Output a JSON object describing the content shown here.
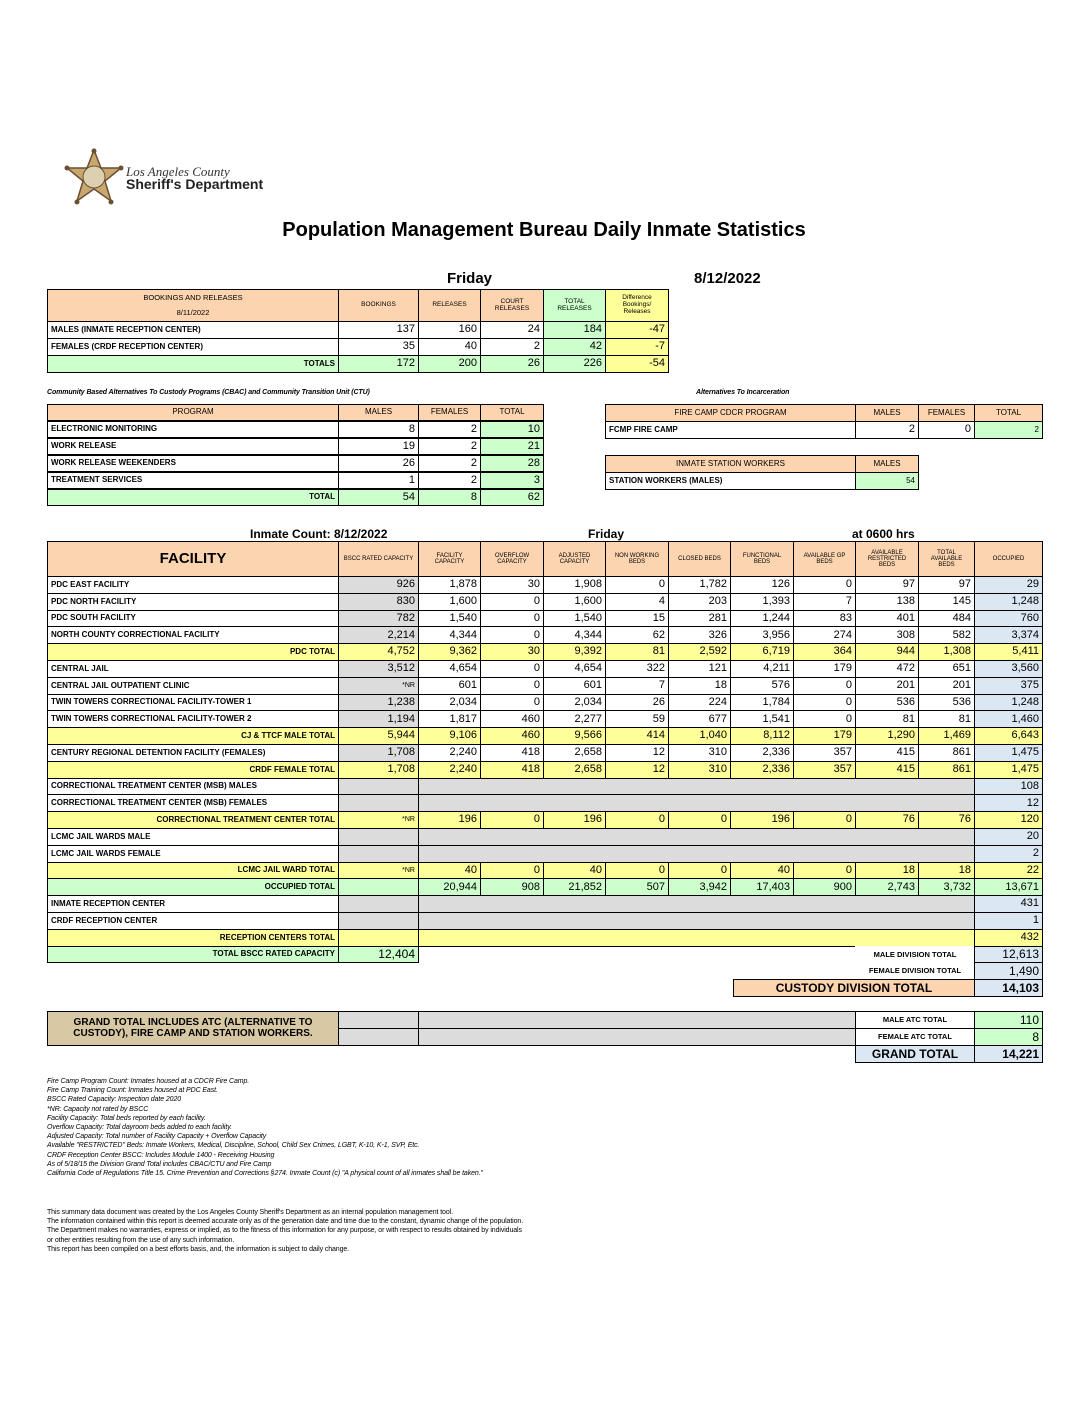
{
  "header": {
    "agency_line1": "Los Angeles County",
    "agency_line2": "Sheriff's Department",
    "title": "Population Management Bureau Daily Inmate Statistics",
    "day": "Friday",
    "date": "8/12/2022"
  },
  "bookings": {
    "title": "BOOKINGS AND RELEASES",
    "date": "8/11/2022",
    "columns": [
      "BOOKINGS",
      "RELEASES",
      "COURT RELEASES",
      "TOTAL RELEASES",
      "Difference Bookings/ Releases"
    ],
    "rows": [
      {
        "label": "MALES (INMATE RECEPTION CENTER)",
        "values": [
          "137",
          "160",
          "24",
          "184",
          "-47"
        ]
      },
      {
        "label": "FEMALES (CRDF RECEPTION CENTER)",
        "values": [
          "35",
          "40",
          "2",
          "42",
          "-7"
        ]
      },
      {
        "label": "TOTALS",
        "values": [
          "172",
          "200",
          "26",
          "226",
          "-54"
        ]
      }
    ]
  },
  "cbac": {
    "caption": "Community Based Alternatives To Custody Programs (CBAC) and Community Transition Unit (CTU)",
    "columns": [
      "PROGRAM",
      "MALES",
      "FEMALES",
      "TOTAL"
    ],
    "rows": [
      [
        "ELECTRONIC MONITORING",
        "8",
        "2",
        "10"
      ],
      [
        "WORK RELEASE",
        "19",
        "2",
        "21"
      ],
      [
        "WORK RELEASE WEEKENDERS",
        "26",
        "2",
        "28"
      ],
      [
        "TREATMENT SERVICES",
        "1",
        "2",
        "3"
      ],
      [
        "TOTAL",
        "54",
        "8",
        "62"
      ]
    ]
  },
  "atc": {
    "caption": "Alternatives To Incarceration",
    "fire_camp": {
      "columns": [
        "FIRE CAMP CDCR PROGRAM",
        "MALES",
        "FEMALES",
        "TOTAL"
      ],
      "rows": [
        [
          "FCMP FIRE CAMP",
          "2",
          "0",
          "2"
        ]
      ]
    },
    "station_workers": {
      "columns": [
        "INMATE STATION WORKERS",
        "MALES"
      ],
      "rows": [
        [
          "STATION WORKERS (MALES)",
          "54"
        ]
      ]
    }
  },
  "inmate_count": {
    "label": "Inmate Count: 8/12/2022",
    "day": "Friday",
    "time": "at 0600 hrs",
    "columns": [
      "FACILITY",
      "BSCC RATED CAPACITY",
      "FACILITY CAPACITY",
      "OVERFLOW CAPACITY",
      "ADJUSTED CAPACITY",
      "NON WORKING BEDS",
      "CLOSED BEDS",
      "FUNCTIONAL BEDS",
      "AVAILABLE GP BEDS",
      "AVAILABLE RESTRICTED BEDS",
      "TOTAL AVAILABLE BEDS",
      "OCCUPIED"
    ],
    "rows": [
      {
        "label": "PDC EAST FACILITY",
        "values": [
          "926",
          "1,878",
          "30",
          "1,908",
          "0",
          "1,782",
          "126",
          "0",
          "97",
          "97",
          "29"
        ]
      },
      {
        "label": "PDC NORTH FACILITY",
        "values": [
          "830",
          "1,600",
          "0",
          "1,600",
          "4",
          "203",
          "1,393",
          "7",
          "138",
          "145",
          "1,248"
        ]
      },
      {
        "label": "PDC SOUTH FACILITY",
        "values": [
          "782",
          "1,540",
          "0",
          "1,540",
          "15",
          "281",
          "1,244",
          "83",
          "401",
          "484",
          "760"
        ]
      },
      {
        "label": "NORTH COUNTY CORRECTIONAL FACILITY",
        "values": [
          "2,214",
          "4,344",
          "0",
          "4,344",
          "62",
          "326",
          "3,956",
          "274",
          "308",
          "582",
          "3,374"
        ]
      },
      {
        "label": "PDC TOTAL",
        "values": [
          "4,752",
          "9,362",
          "30",
          "9,392",
          "81",
          "2,592",
          "6,719",
          "364",
          "944",
          "1,308",
          "5,411"
        ]
      },
      {
        "label": "CENTRAL JAIL",
        "values": [
          "3,512",
          "4,654",
          "0",
          "4,654",
          "322",
          "121",
          "4,211",
          "179",
          "472",
          "651",
          "3,560"
        ]
      },
      {
        "label": "CENTRAL JAIL OUTPATIENT CLINIC",
        "values": [
          "*NR",
          "601",
          "0",
          "601",
          "7",
          "18",
          "576",
          "0",
          "201",
          "201",
          "375"
        ]
      },
      {
        "label": "TWIN TOWERS CORRECTIONAL FACILITY-TOWER 1",
        "values": [
          "1,238",
          "2,034",
          "0",
          "2,034",
          "26",
          "224",
          "1,784",
          "0",
          "536",
          "536",
          "1,248"
        ]
      },
      {
        "label": "TWIN TOWERS CORRECTIONAL FACILITY-TOWER 2",
        "values": [
          "1,194",
          "1,817",
          "460",
          "2,277",
          "59",
          "677",
          "1,541",
          "0",
          "81",
          "81",
          "1,460"
        ]
      },
      {
        "label": "CJ & TTCF MALE TOTAL",
        "values": [
          "5,944",
          "9,106",
          "460",
          "9,566",
          "414",
          "1,040",
          "8,112",
          "179",
          "1,290",
          "1,469",
          "6,643"
        ]
      },
      {
        "label": "CENTURY REGIONAL DETENTION FACILITY (FEMALES)",
        "values": [
          "1,708",
          "2,240",
          "418",
          "2,658",
          "12",
          "310",
          "2,336",
          "357",
          "415",
          "861",
          "1,475"
        ]
      },
      {
        "label": "CRDF FEMALE TOTAL",
        "values": [
          "1,708",
          "2,240",
          "418",
          "2,658",
          "12",
          "310",
          "2,336",
          "357",
          "415",
          "861",
          "1,475"
        ]
      },
      {
        "label": "CORRECTIONAL TREATMENT CENTER (MSB) MALES",
        "values": [
          null,
          null,
          null,
          null,
          null,
          null,
          null,
          null,
          null,
          null,
          "108"
        ]
      },
      {
        "label": "CORRECTIONAL TREATMENT CENTER (MSB) FEMALES",
        "values": [
          null,
          null,
          null,
          null,
          null,
          null,
          null,
          null,
          null,
          null,
          "12"
        ]
      },
      {
        "label": "CORRECTIONAL TREATMENT CENTER  TOTAL",
        "values": [
          "*NR",
          "196",
          "0",
          "196",
          "0",
          "0",
          "196",
          "0",
          "76",
          "76",
          "120"
        ]
      },
      {
        "label": "LCMC JAIL WARDS MALE",
        "values": [
          null,
          null,
          null,
          null,
          null,
          null,
          null,
          null,
          null,
          null,
          "20"
        ]
      },
      {
        "label": "LCMC JAIL WARDS FEMALE",
        "values": [
          null,
          null,
          null,
          null,
          null,
          null,
          null,
          null,
          null,
          null,
          "2"
        ]
      },
      {
        "label": "LCMC JAIL WARD TOTAL",
        "values": [
          "*NR",
          "40",
          "0",
          "40",
          "0",
          "0",
          "40",
          "0",
          "18",
          "18",
          "22"
        ]
      },
      {
        "label": "OCCUPIED TOTAL",
        "values": [
          null,
          "20,944",
          "908",
          "21,852",
          "507",
          "3,942",
          "17,403",
          "900",
          "2,743",
          "3,732",
          "13,671"
        ]
      },
      {
        "label": "INMATE RECEPTION CENTER",
        "values": [
          null,
          null,
          null,
          null,
          null,
          null,
          null,
          null,
          null,
          null,
          "431"
        ]
      },
      {
        "label": "CRDF RECEPTION CENTER",
        "values": [
          null,
          null,
          null,
          null,
          null,
          null,
          null,
          null,
          null,
          null,
          "1"
        ]
      },
      {
        "label": "RECEPTION CENTERS TOTAL",
        "values": [
          null,
          null,
          null,
          null,
          null,
          null,
          null,
          null,
          null,
          null,
          "432"
        ]
      }
    ]
  },
  "summary": {
    "bscc_total": {
      "label": "TOTAL BSCC RATED CAPACITY",
      "value": "12,404"
    },
    "male_division": {
      "label": "MALE DIVISION TOTAL",
      "value": "12,613"
    },
    "female_division": {
      "label": "FEMALE DIVISION TOTAL",
      "value": "1,490"
    },
    "custody_division": {
      "label": "CUSTODY DIVISION TOTAL",
      "value": "14,103"
    }
  },
  "grand": {
    "note": "GRAND TOTAL INCLUDES ATC (ALTERNATIVE TO CUSTODY), FIRE CAMP AND STATION WORKERS.",
    "male_atc": {
      "label": "MALE ATC TOTAL",
      "value": "110"
    },
    "female_atc": {
      "label": "FEMALE ATC TOTAL",
      "value": "8"
    },
    "grand_total": {
      "label": "GRAND TOTAL",
      "value": "14,221"
    }
  },
  "footnotes": [
    "Fire Camp Program Count: Inmates housed at a CDCR Fire Camp.",
    "Fire Camp Training Count: Inmates housed at PDC East.",
    "BSCC Rated Capacity: Inspection date 2020",
    "*NR: Capacity not rated by BSCC",
    "Facility Capacity: Total beds reported by each facility.",
    "Overflow Capacity: Total dayroom beds added to each facility.",
    "Adjusted Capacity: Total number of Facility Capacity + Overflow Capacity",
    "Available \"RESTRICTED\" Beds: Inmate Workers, Medical, Discipline, School, Child Sex Crimes, LGBT, K-10, K-1, SVP, Etc.",
    "CRDF Reception Center BSCC: Includes Module 1400 - Receiving Housing",
    "As of 5/18/15 the Division Grand Total includes CBAC/CTU and Fire Camp",
    "California Code of Regulations Title 15. Crime Prevention and Corrections §274. Inmate Count (c) \"A physical count of all inmates shall be taken.\""
  ],
  "disclaimer": [
    "This summary data document was created by the Los Angeles County Sheriff's Department as an internal population management tool.",
    "The information contained within this report is deemed accurate only as of the generation date and time due to the constant, dynamic change of the population.",
    "The Department makes no warranties, express or implied, as to the fitness of this information for any purpose, or with respect to results obtained by individuals",
    "or other entities resulting from the use of any such information.",
    "This report has been compiled on a best efforts basis, and, the information is subject to daily change."
  ]
}
